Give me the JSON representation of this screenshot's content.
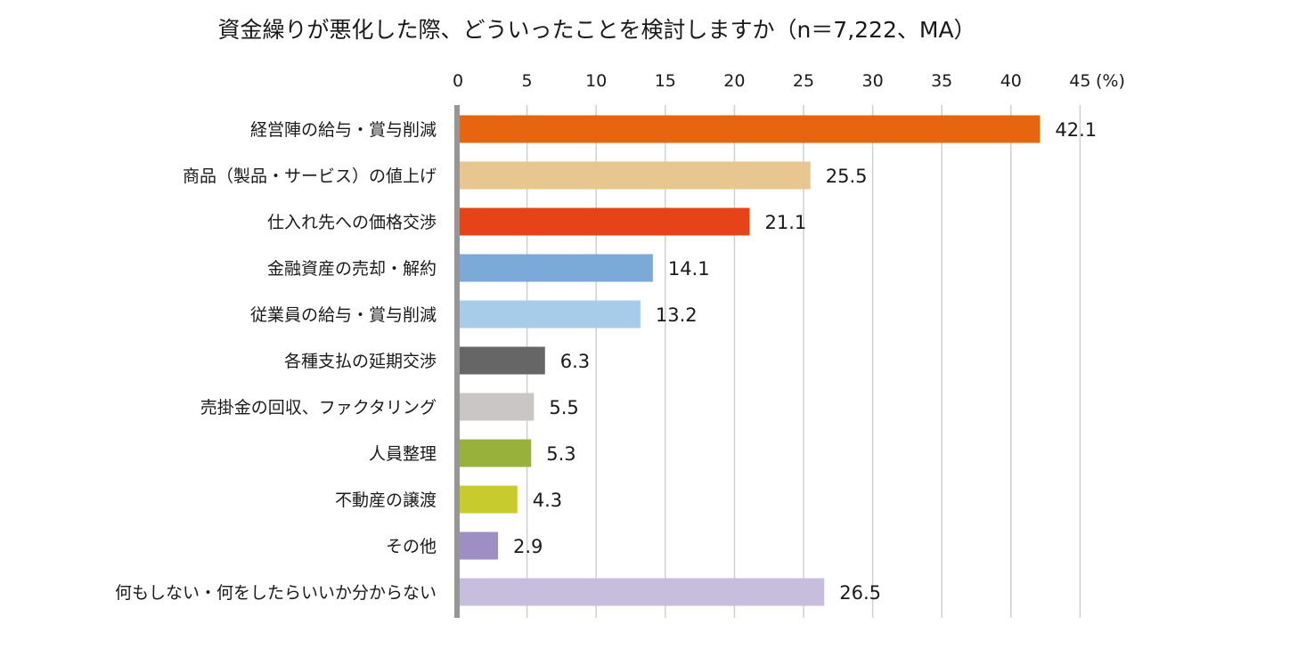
{
  "chart_data": {
    "type": "bar",
    "orientation": "horizontal",
    "title": "資金繰りが悪化した際、どういったことを検討しますか（n＝7,222、MA）",
    "unit_label": "(%)",
    "xlim": [
      0,
      45
    ],
    "tick_step": 5,
    "ticks": [
      "0",
      "5",
      "10",
      "15",
      "20",
      "25",
      "30",
      "35",
      "40",
      "45"
    ],
    "grid": true,
    "categories": [
      "経営陣の給与・賞与削減",
      "商品（製品・サービス）の値上げ",
      "仕入れ先への価格交渉",
      "金融資産の売却・解約",
      "従業員の給与・賞与削減",
      "各種支払の延期交渉",
      "売掛金の回収、ファクタリング",
      "人員整理",
      "不動産の譲渡",
      "その他",
      "何もしない・何をしたらいいか分からない"
    ],
    "values": [
      42.1,
      25.5,
      21.1,
      14.1,
      13.2,
      6.3,
      5.5,
      5.3,
      4.3,
      2.9,
      26.5
    ],
    "value_labels": [
      "42.1",
      "25.5",
      "21.1",
      "14.1",
      "13.2",
      "6.3",
      "5.5",
      "5.3",
      "4.3",
      "2.9",
      "26.5"
    ],
    "colors": [
      "#E8650F",
      "#E8C68F",
      "#E64418",
      "#7BA9D8",
      "#A6CCEA",
      "#666666",
      "#CAC6C6",
      "#97B13B",
      "#C8CB2D",
      "#9D8FC4",
      "#C7BEDE"
    ]
  }
}
